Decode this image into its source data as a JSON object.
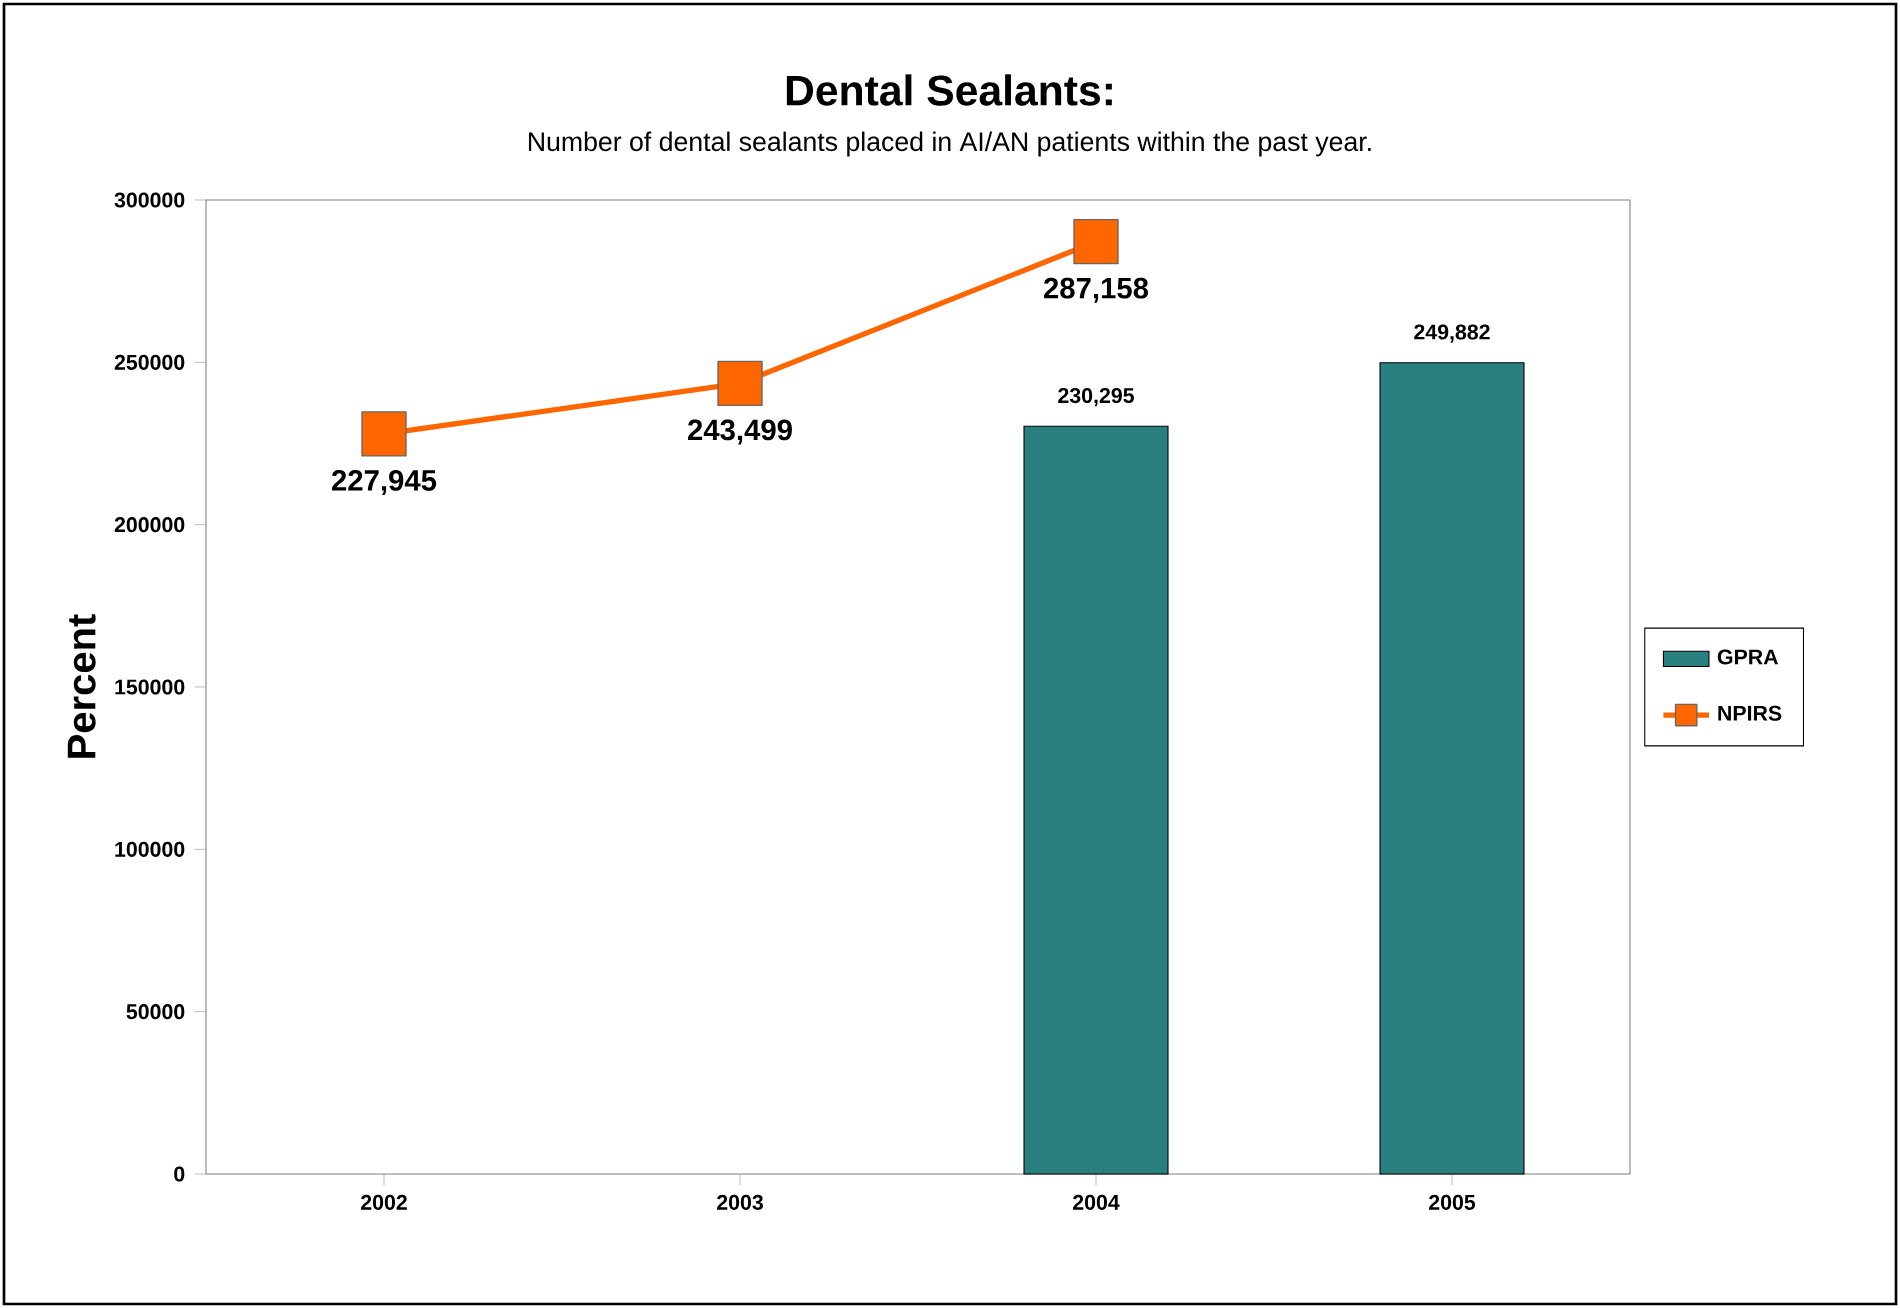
{
  "chart_data": {
    "type": "bar",
    "title": "Dental Sealants:",
    "subtitle": "Number of dental sealants placed in AI/AN patients within the past year.",
    "ylabel": "Percent",
    "categories": [
      "2002",
      "2003",
      "2004",
      "2005"
    ],
    "series": [
      {
        "name": "GPRA",
        "color": "#2a8080",
        "values": [
          null,
          null,
          230295,
          249882
        ],
        "value_labels": [
          null,
          null,
          "230,295",
          "249,882"
        ]
      },
      {
        "name": "NPIRS",
        "type": "line",
        "color": "#ff6600",
        "marker": "square",
        "values": [
          227945,
          243499,
          287158,
          null
        ],
        "value_labels": [
          "227,945",
          "243,499",
          "287,158",
          null
        ]
      }
    ],
    "ylim": [
      0,
      300000
    ],
    "yticks": [
      0,
      50000,
      100000,
      150000,
      200000,
      250000,
      300000
    ],
    "legend": "right",
    "grid": false
  }
}
